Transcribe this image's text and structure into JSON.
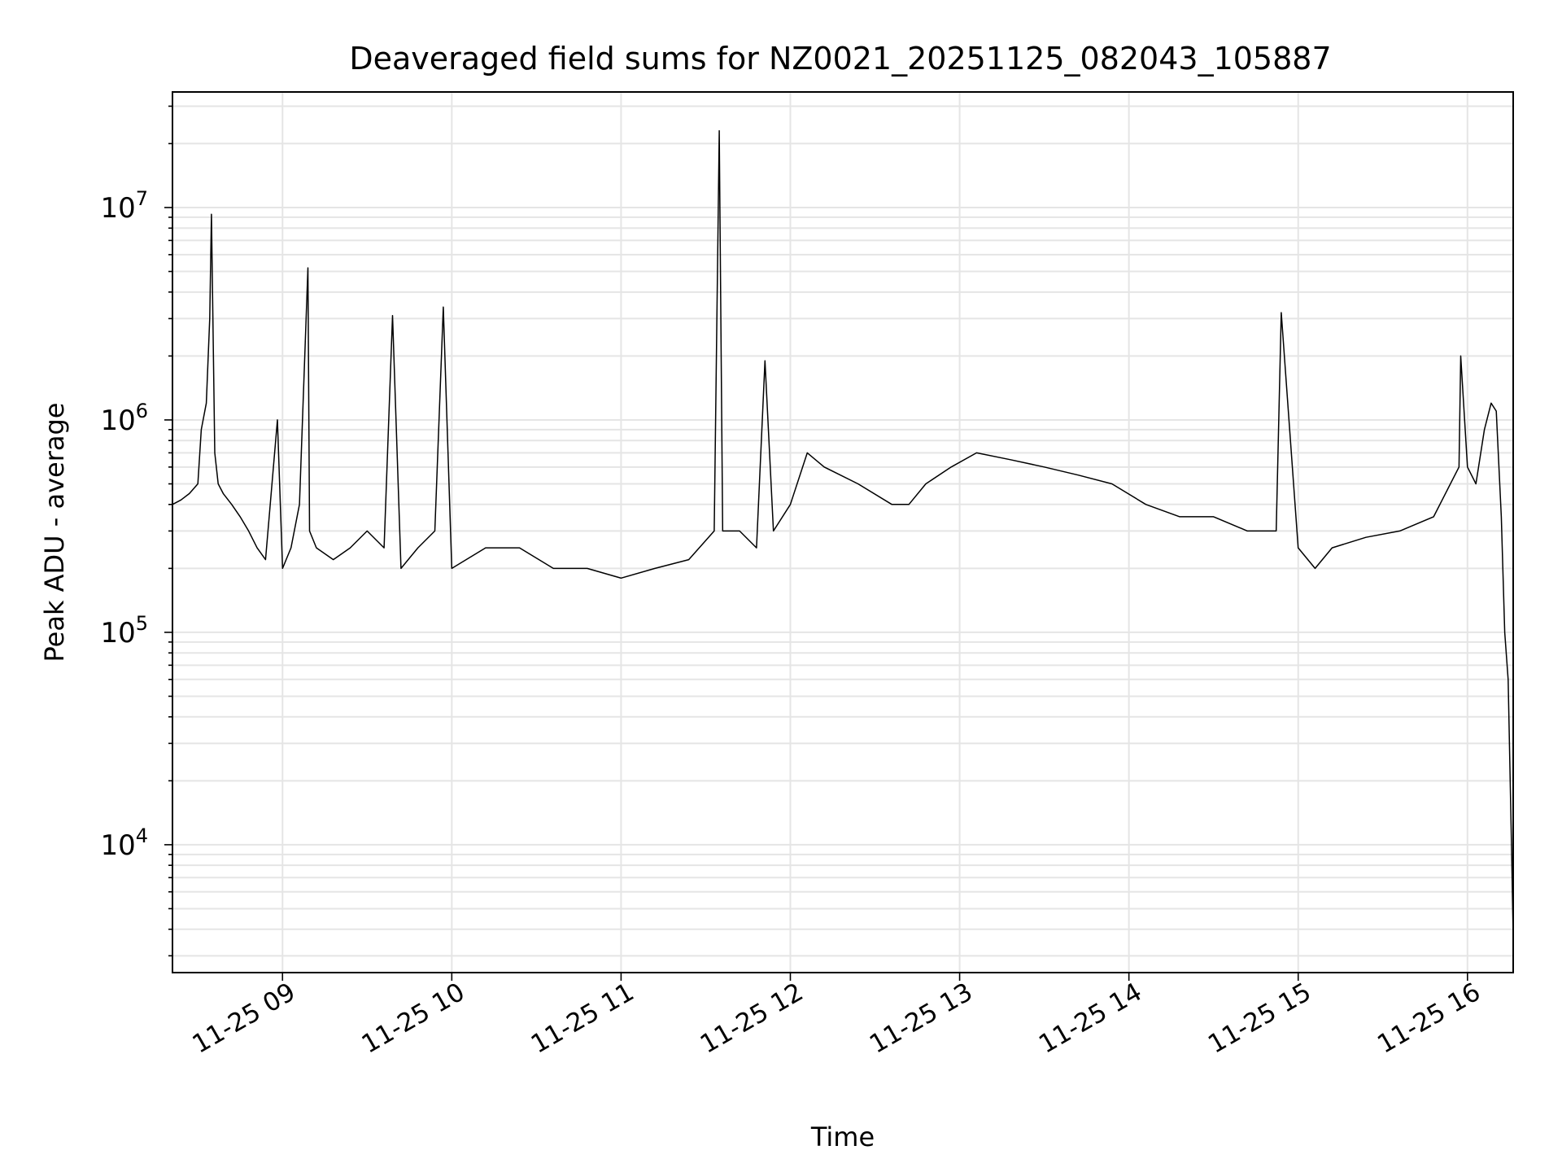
{
  "chart_data": {
    "type": "line",
    "title": "Deaveraged field sums for NZ0021_20251125_082043_105887",
    "xlabel": "Time",
    "ylabel": "Peak ADU - average",
    "yscale": "log",
    "ylim": [
      2500,
      35000000
    ],
    "xlim_hours": [
      8.35,
      16.27
    ],
    "x_ticks": [
      {
        "value": 9,
        "label": "11-25 09"
      },
      {
        "value": 10,
        "label": "11-25 10"
      },
      {
        "value": 11,
        "label": "11-25 11"
      },
      {
        "value": 12,
        "label": "11-25 12"
      },
      {
        "value": 13,
        "label": "11-25 13"
      },
      {
        "value": 14,
        "label": "11-25 14"
      },
      {
        "value": 15,
        "label": "11-25 15"
      },
      {
        "value": 16,
        "label": "11-25 16"
      }
    ],
    "y_ticks": [
      {
        "value": 10000,
        "base": "10",
        "exp": "4"
      },
      {
        "value": 100000,
        "base": "10",
        "exp": "5"
      },
      {
        "value": 1000000,
        "base": "10",
        "exp": "6"
      },
      {
        "value": 10000000,
        "base": "10",
        "exp": "7"
      }
    ],
    "grid": true,
    "line_color": "#000000",
    "grid_color": "#e5e5e5",
    "series": [
      {
        "name": "Peak ADU - average",
        "x": [
          8.35,
          8.4,
          8.45,
          8.5,
          8.52,
          8.55,
          8.57,
          8.58,
          8.6,
          8.62,
          8.65,
          8.7,
          8.75,
          8.8,
          8.85,
          8.9,
          8.97,
          9.0,
          9.05,
          9.1,
          9.15,
          9.16,
          9.2,
          9.3,
          9.4,
          9.5,
          9.6,
          9.65,
          9.7,
          9.8,
          9.9,
          9.95,
          10.0,
          10.2,
          10.4,
          10.6,
          10.8,
          11.0,
          11.2,
          11.4,
          11.55,
          11.58,
          11.6,
          11.7,
          11.8,
          11.85,
          11.9,
          12.0,
          12.1,
          12.2,
          12.4,
          12.6,
          12.7,
          12.8,
          12.95,
          13.1,
          13.3,
          13.5,
          13.7,
          13.9,
          14.1,
          14.3,
          14.5,
          14.7,
          14.87,
          14.9,
          15.0,
          15.1,
          15.2,
          15.4,
          15.6,
          15.8,
          15.95,
          15.96,
          16.0,
          16.05,
          16.1,
          16.14,
          16.17,
          16.2,
          16.22,
          16.24,
          16.25,
          16.26,
          16.27
        ],
        "y": [
          400000,
          420000,
          450000,
          500000,
          900000,
          1200000,
          3000000,
          9300000,
          700000,
          500000,
          450000,
          400000,
          350000,
          300000,
          250000,
          220000,
          1000000,
          200000,
          250000,
          400000,
          5200000,
          300000,
          250000,
          220000,
          250000,
          300000,
          250000,
          3100000,
          200000,
          250000,
          300000,
          3400000,
          200000,
          250000,
          250000,
          200000,
          200000,
          180000,
          200000,
          220000,
          300000,
          23000000,
          300000,
          300000,
          250000,
          1900000,
          300000,
          400000,
          700000,
          600000,
          500000,
          400000,
          400000,
          500000,
          600000,
          700000,
          650000,
          600000,
          550000,
          500000,
          400000,
          350000,
          350000,
          300000,
          300000,
          3200000,
          250000,
          200000,
          250000,
          280000,
          300000,
          350000,
          600000,
          2000000,
          600000,
          500000,
          900000,
          1200000,
          1100000,
          350000,
          100000,
          60000,
          25000,
          10000,
          3700
        ]
      }
    ]
  }
}
